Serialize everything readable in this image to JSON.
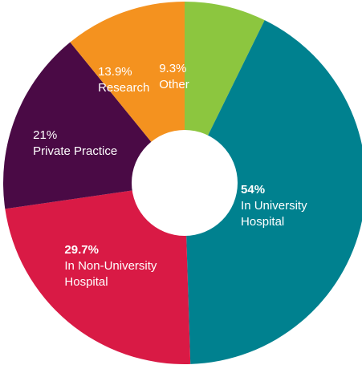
{
  "chart_data": {
    "type": "donut",
    "categories": [
      "Other",
      "In University Hospital",
      "In Non-University Hospital",
      "Private Practice",
      "Research"
    ],
    "values": [
      9.3,
      54,
      29.7,
      21,
      13.9
    ],
    "value_labels": [
      "9.3%",
      "54%",
      "29.7%",
      "21%",
      "13.9%"
    ],
    "colors": [
      "#8cc63f",
      "#00818f",
      "#d91a45",
      "#4a0a45",
      "#f4921f"
    ]
  }
}
